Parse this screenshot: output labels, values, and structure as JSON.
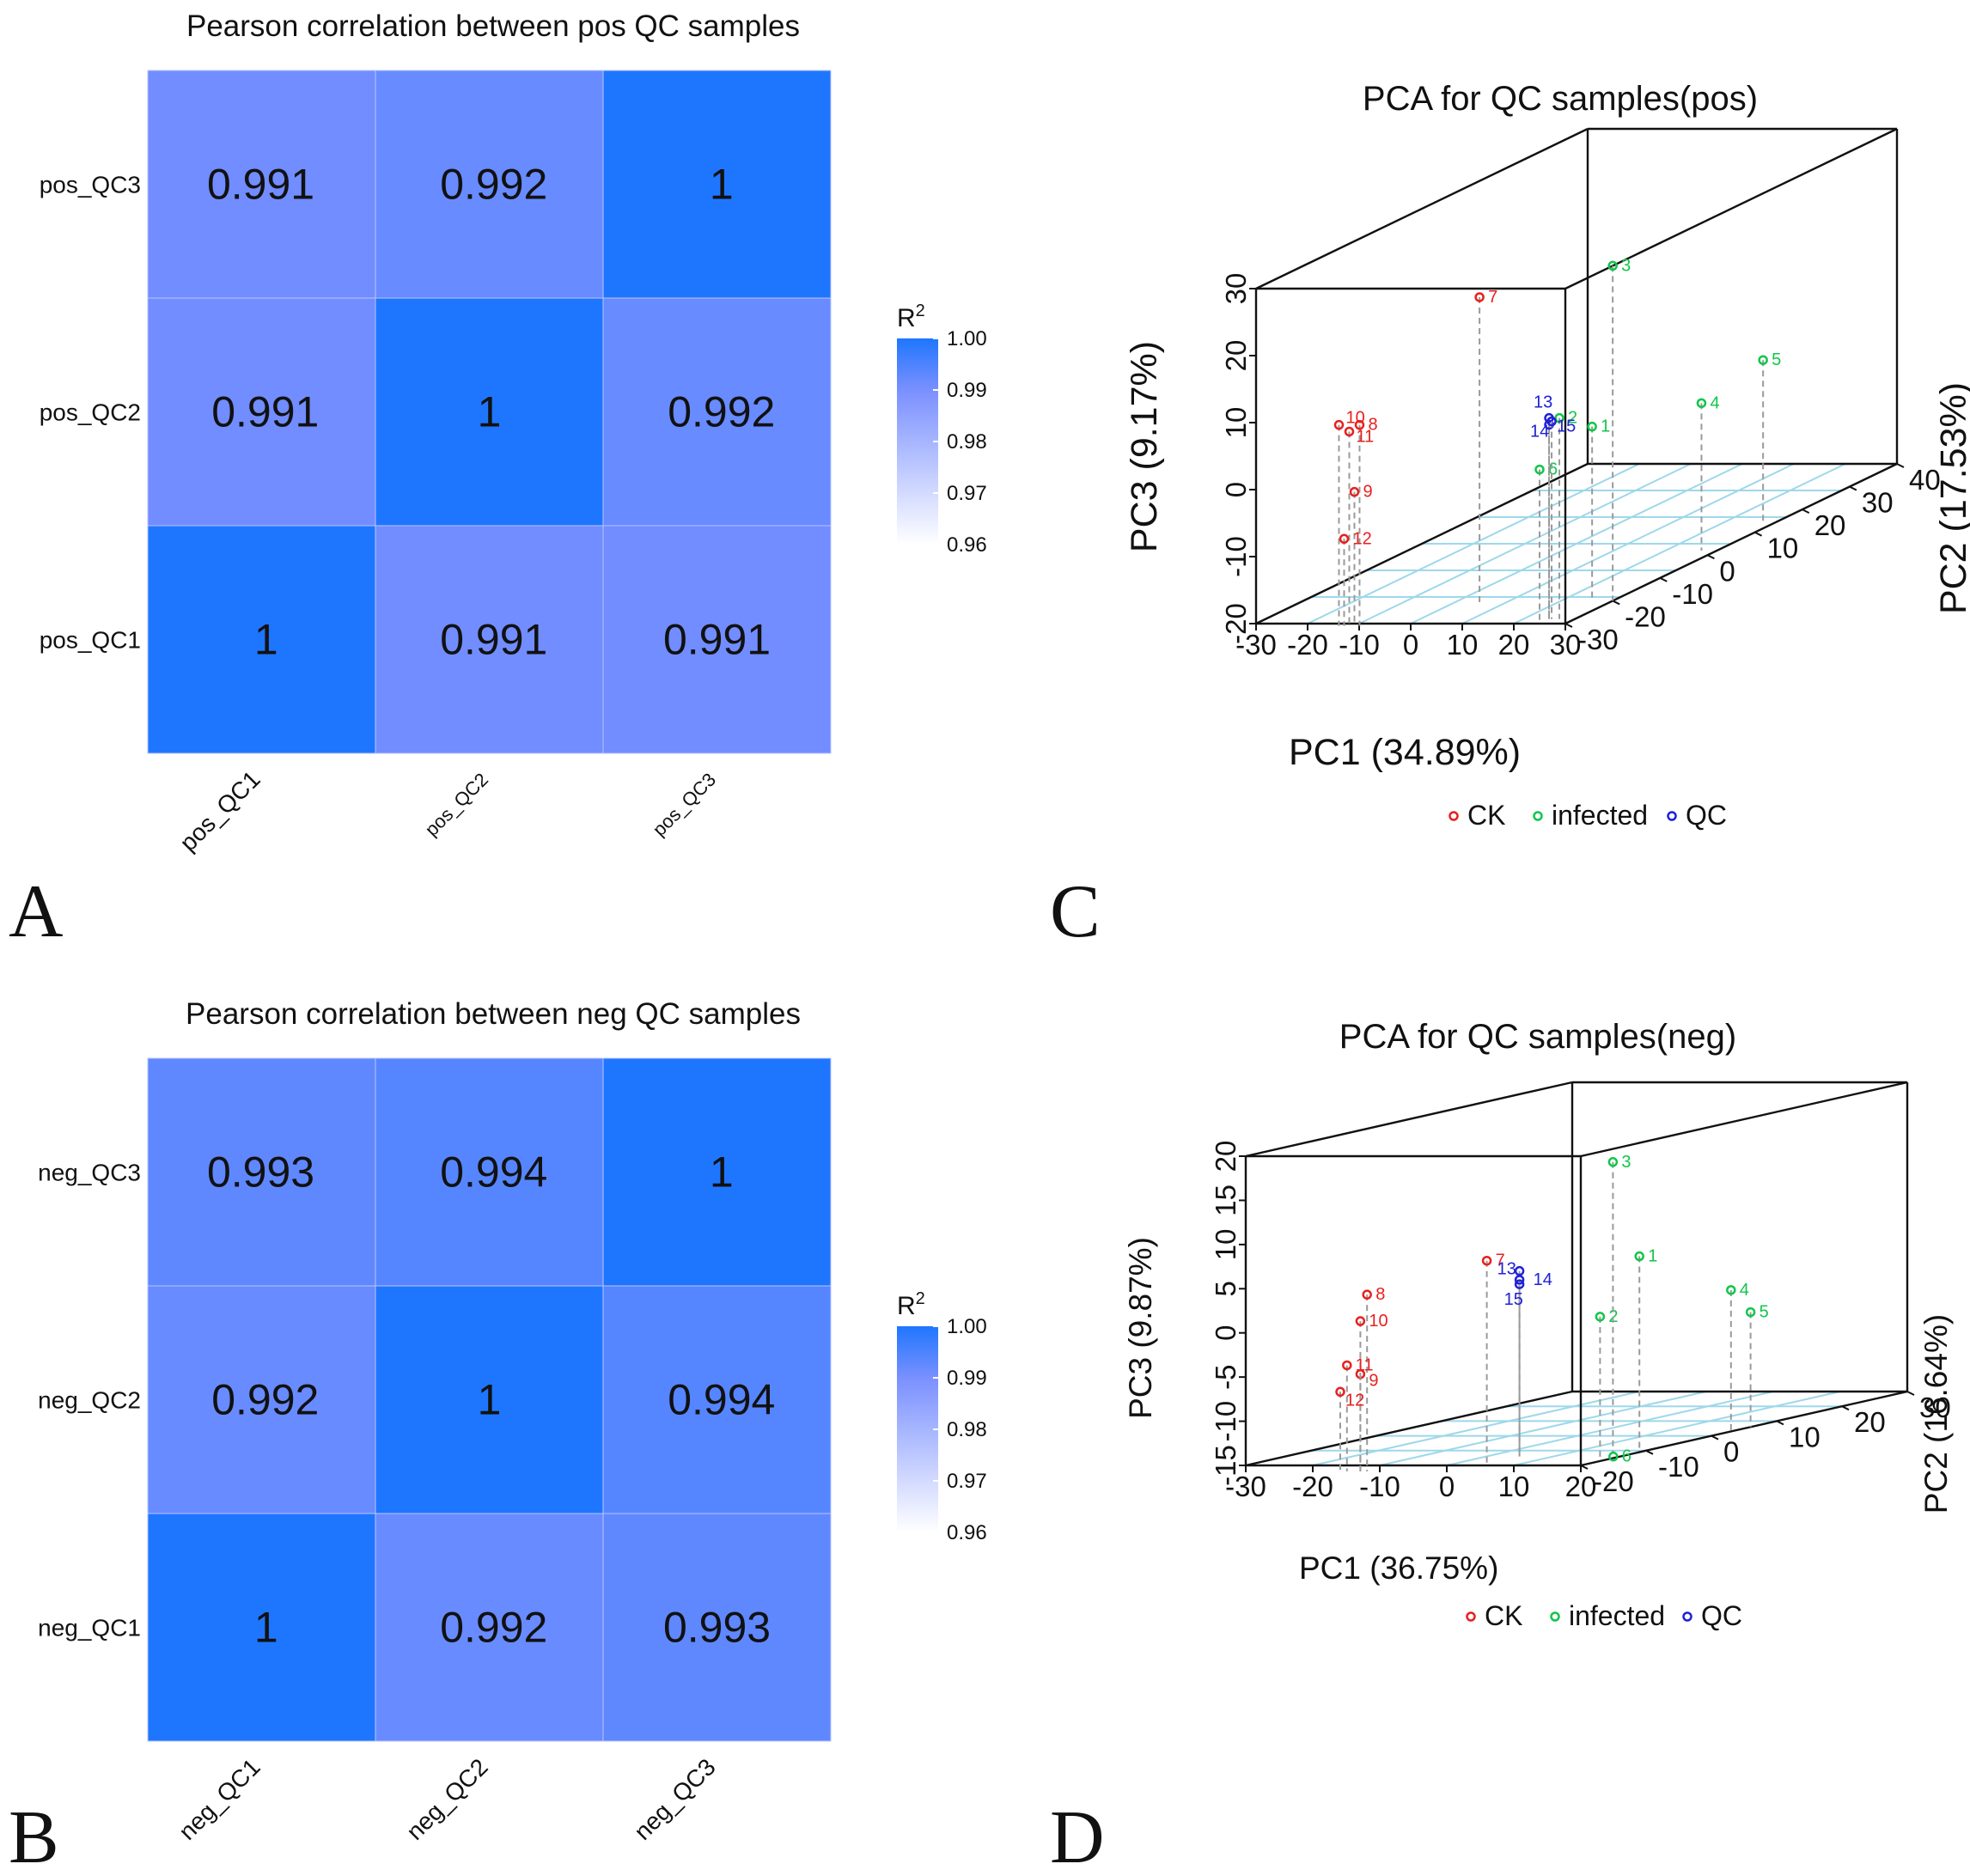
{
  "chart_data": [
    {
      "panel": "A",
      "type": "heatmap",
      "title": "Pearson correlation between pos QC samples",
      "rows": [
        "pos_QC3",
        "pos_QC2",
        "pos_QC1"
      ],
      "columns": [
        "pos_QC1",
        "pos_QC2",
        "pos_QC3"
      ],
      "values": [
        [
          "0.991",
          "0.992",
          "1"
        ],
        [
          "0.991",
          "1",
          "0.992"
        ],
        [
          "1",
          "0.991",
          "0.991"
        ]
      ],
      "legend": {
        "title": "R",
        "superscript": "2",
        "ticks": [
          "1.00",
          "0.99",
          "0.98",
          "0.97",
          "0.96"
        ],
        "range": [
          0.96,
          1.0
        ]
      }
    },
    {
      "panel": "B",
      "type": "heatmap",
      "title": "Pearson correlation between neg QC samples",
      "rows": [
        "neg_QC3",
        "neg_QC2",
        "neg_QC1"
      ],
      "columns": [
        "neg_QC1",
        "neg_QC2",
        "neg_QC3"
      ],
      "values": [
        [
          "0.993",
          "0.994",
          "1"
        ],
        [
          "0.992",
          "1",
          "0.994"
        ],
        [
          "1",
          "0.992",
          "0.993"
        ]
      ],
      "legend": {
        "title": "R",
        "superscript": "2",
        "ticks": [
          "1.00",
          "0.99",
          "0.98",
          "0.97",
          "0.96"
        ],
        "range": [
          0.96,
          1.0
        ]
      }
    },
    {
      "panel": "C",
      "type": "scatter",
      "title": "PCA for QC samples(pos)",
      "xlabel": "PC1 (34.89%)",
      "ylabel": "PC2 (17.53%)",
      "zlabel": "PC3 (9.17%)",
      "xticks": [
        "-30",
        "-20",
        "-10",
        "0",
        "10",
        "20",
        "30"
      ],
      "yticks": [
        "-30",
        "-20",
        "-10",
        "0",
        "10",
        "20",
        "30",
        "40"
      ],
      "zticks": [
        "-20",
        "-10",
        "0",
        "10",
        "20",
        "30"
      ],
      "xlim": [
        -30,
        30
      ],
      "ylim": [
        -30,
        40
      ],
      "zlim": [
        -20,
        30
      ],
      "legend": [
        "CK",
        "infected",
        "QC"
      ],
      "points": [
        {
          "label": "1",
          "group": "infected",
          "x": 26,
          "y": -20,
          "z": 6
        },
        {
          "label": "2",
          "group": "infected",
          "x": 27,
          "y": -28,
          "z": 10
        },
        {
          "label": "3",
          "group": "infected",
          "x": 30,
          "y": -20,
          "z": 30
        },
        {
          "label": "4",
          "group": "infected",
          "x": 27,
          "y": 2,
          "z": 2
        },
        {
          "label": "5",
          "group": "infected",
          "x": 27,
          "y": 15,
          "z": 4
        },
        {
          "label": "6",
          "group": "infected",
          "x": 25,
          "y": -30,
          "z": 3
        },
        {
          "label": "7",
          "group": "CK",
          "x": 6,
          "y": -22,
          "z": 26
        },
        {
          "label": "8",
          "group": "CK",
          "x": -9,
          "y": -31,
          "z": 10
        },
        {
          "label": "9",
          "group": "CK",
          "x": -10,
          "y": -31,
          "z": 0
        },
        {
          "label": "10",
          "group": "CK",
          "x": -13,
          "y": -31,
          "z": 10
        },
        {
          "label": "11",
          "group": "CK",
          "x": -11,
          "y": -31,
          "z": 9
        },
        {
          "label": "12",
          "group": "CK",
          "x": -12,
          "y": -31,
          "z": -7
        },
        {
          "label": "13",
          "group": "QC",
          "x": 25,
          "y": -28,
          "z": 10
        },
        {
          "label": "14",
          "group": "QC",
          "x": 25,
          "y": -28,
          "z": 9
        },
        {
          "label": "15",
          "group": "QC",
          "x": 25.5,
          "y": -28,
          "z": 9.5
        }
      ]
    },
    {
      "panel": "D",
      "type": "scatter",
      "title": "PCA for QC samples(neg)",
      "xlabel": "PC1 (36.75%)",
      "ylabel": "PC2 (16.64%)",
      "zlabel": "PC3 (9.87%)",
      "xticks": [
        "-30",
        "-20",
        "-10",
        "0",
        "10",
        "20"
      ],
      "yticks": [
        "-20",
        "-10",
        "0",
        "10",
        "20",
        "30"
      ],
      "zticks": [
        "-15",
        "-10",
        "-5",
        "0",
        "5",
        "10",
        "15",
        "20"
      ],
      "xlim": [
        -30,
        20
      ],
      "ylim": [
        -20,
        30
      ],
      "zlim": [
        -15,
        20
      ],
      "legend": [
        "CK",
        "infected",
        "QC"
      ],
      "points": [
        {
          "label": "1",
          "group": "infected",
          "x": 19,
          "y": -10,
          "z": 7
        },
        {
          "label": "2",
          "group": "infected",
          "x": 18,
          "y": -15,
          "z": 1
        },
        {
          "label": "3",
          "group": "infected",
          "x": 17,
          "y": -12,
          "z": 18
        },
        {
          "label": "4",
          "group": "infected",
          "x": 20,
          "y": 3,
          "z": 1
        },
        {
          "label": "5",
          "group": "infected",
          "x": 20,
          "y": 6,
          "z": -2
        },
        {
          "label": "6",
          "group": "infected",
          "x": 19,
          "y": -14,
          "z": -15
        },
        {
          "label": "7",
          "group": "CK",
          "x": 5,
          "y": -19,
          "z": 8
        },
        {
          "label": "8",
          "group": "CK",
          "x": -8,
          "y": -24,
          "z": 5
        },
        {
          "label": "9",
          "group": "CK",
          "x": -9,
          "y": -24,
          "z": -4
        },
        {
          "label": "10",
          "group": "CK",
          "x": -9,
          "y": -24,
          "z": 2
        },
        {
          "label": "11",
          "group": "CK",
          "x": -11,
          "y": -24,
          "z": -3
        },
        {
          "label": "12",
          "group": "CK",
          "x": -12,
          "y": -24,
          "z": -6
        },
        {
          "label": "13",
          "group": "QC",
          "x": 5,
          "y": -14,
          "z": 6
        },
        {
          "label": "14",
          "group": "QC",
          "x": 5,
          "y": -14,
          "z": 5
        },
        {
          "label": "15",
          "group": "QC",
          "x": 5,
          "y": -14,
          "z": 4.5
        }
      ]
    }
  ],
  "panel_letters": [
    "A",
    "B",
    "C",
    "D"
  ],
  "colors": {
    "heat_high": "#1f76fe",
    "heat_mid": "#7a90ff",
    "heat_low": "#ffffff",
    "CK": "#e8201e",
    "infected": "#11c64a",
    "QC": "#2020d8",
    "floor_grid": "#9ed8ea"
  }
}
